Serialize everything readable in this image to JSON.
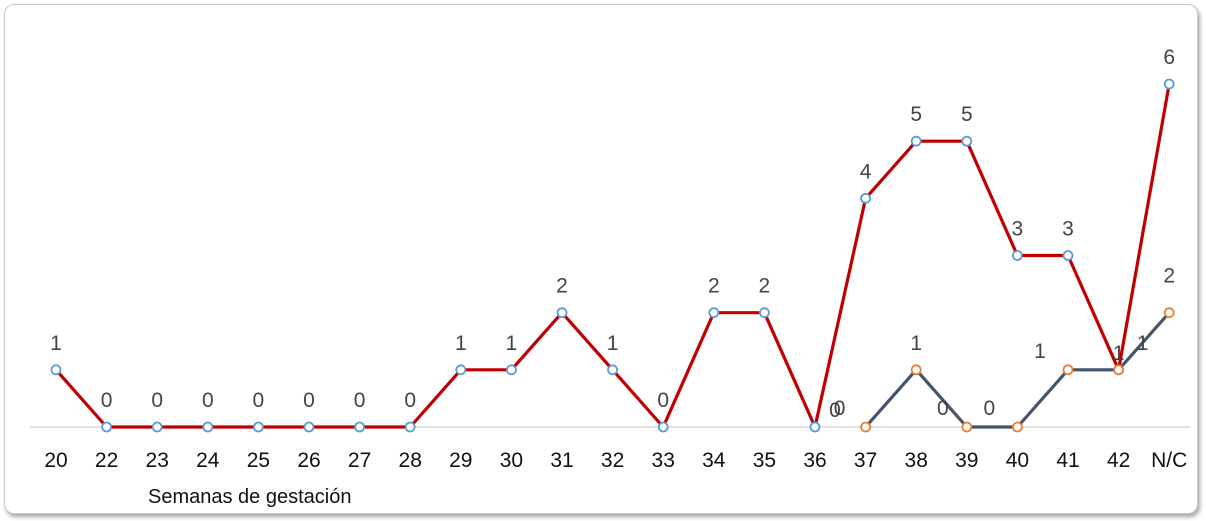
{
  "chart_data": {
    "type": "line",
    "xlabel": "Semanas de gestación",
    "ylabel": "",
    "ylim": [
      0,
      6
    ],
    "grid": false,
    "legend": "none",
    "categories": [
      "20",
      "22",
      "23",
      "24",
      "25",
      "26",
      "27",
      "28",
      "29",
      "30",
      "31",
      "32",
      "33",
      "34",
      "35",
      "36",
      "37",
      "38",
      "39",
      "40",
      "41",
      "42",
      "N/C"
    ],
    "series": [
      {
        "color": "#c00000",
        "marker_color": "#5b9bd5",
        "values": [
          1,
          0,
          0,
          0,
          0,
          0,
          0,
          0,
          1,
          1,
          2,
          1,
          0,
          2,
          2,
          0,
          4,
          5,
          5,
          3,
          3,
          1,
          6
        ]
      },
      {
        "color": "#44546a",
        "marker_color": "#ed7d31",
        "values": [
          null,
          null,
          null,
          null,
          null,
          null,
          null,
          null,
          null,
          null,
          null,
          null,
          null,
          null,
          null,
          null,
          0,
          1,
          0,
          0,
          1,
          1,
          2
        ]
      }
    ]
  }
}
